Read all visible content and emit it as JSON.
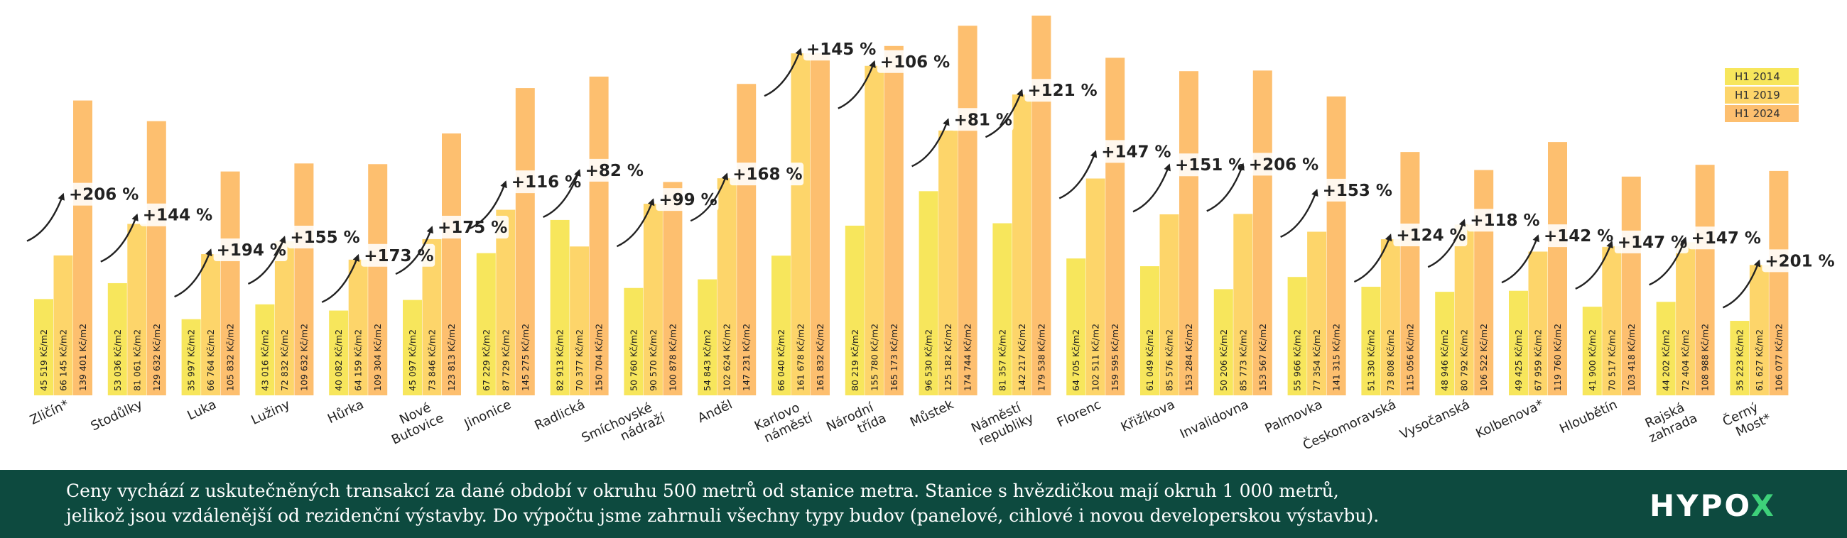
{
  "chart_data": {
    "type": "bar",
    "categories": [
      "Zličín*",
      "Stodůlky",
      "Luka",
      "Lužiny",
      "Hůrka",
      "Nové Butovice",
      "Jinonice",
      "Radlická",
      "Smíchovské nádraží",
      "Anděl",
      "Karlovo náměstí",
      "Národní třída",
      "Můstek",
      "Náměstí republiky",
      "Florenc",
      "Křižíkova",
      "Invalidovna",
      "Palmovka",
      "Českomoravská",
      "Vysočanská",
      "Kolbenova*",
      "Hloubětín",
      "Rajská zahrada",
      "Černý Most*"
    ],
    "category_lines": [
      [
        "Zličín*"
      ],
      [
        "Stodůlky"
      ],
      [
        "Luka"
      ],
      [
        "Lužiny"
      ],
      [
        "Hůrka"
      ],
      [
        "Nové",
        "Butovice"
      ],
      [
        "Jinonice"
      ],
      [
        "Radlická"
      ],
      [
        "Smíchovské",
        "nádraží"
      ],
      [
        "Anděl"
      ],
      [
        "Karlovo",
        "náměstí"
      ],
      [
        "Národní",
        "třída"
      ],
      [
        "Můstek"
      ],
      [
        "Náměstí",
        "republiky"
      ],
      [
        "Florenc"
      ],
      [
        "Křižíkova"
      ],
      [
        "Invalidovna"
      ],
      [
        "Palmovka"
      ],
      [
        "Českomoravská"
      ],
      [
        "Vysočanská"
      ],
      [
        "Kolbenova*"
      ],
      [
        "Hloubětín"
      ],
      [
        "Rajská",
        "zahrada"
      ],
      [
        "Černý",
        "Most*"
      ]
    ],
    "series": [
      {
        "name": "H1 2014",
        "color": "#f7e65c",
        "values": [
          45519,
          53036,
          35997,
          43016,
          40082,
          45097,
          67229,
          82913,
          50760,
          54843,
          66040,
          80219,
          96530,
          81357,
          64705,
          61049,
          50206,
          55966,
          51330,
          48946,
          49425,
          41900,
          44202,
          35223
        ]
      },
      {
        "name": "H1 2019",
        "color": "#fdd56a",
        "values": [
          66145,
          81061,
          66764,
          72832,
          64159,
          73846,
          87729,
          70377,
          90570,
          102624,
          161678,
          155780,
          125182,
          142217,
          102511,
          85576,
          85773,
          77354,
          73808,
          80792,
          67959,
          70517,
          72404,
          61627
        ]
      },
      {
        "name": "H1 2024",
        "color": "#fdbf6f",
        "values": [
          139401,
          129632,
          105832,
          109632,
          109304,
          123813,
          145275,
          150704,
          100878,
          147231,
          161832,
          165173,
          174744,
          179538,
          159595,
          153284,
          153567,
          141315,
          115056,
          106522,
          119760,
          103418,
          108988,
          106077
        ]
      }
    ],
    "value_labels": [
      [
        "45 519 Kč/m2",
        "66 145 Kč/m2",
        "139 401 Kč/m2"
      ],
      [
        "53 036 Kč/m2",
        "81 061 Kč/m2",
        "129 632 Kč/m2"
      ],
      [
        "35 997 Kč/m2",
        "66 764 Kč/m2",
        "105 832 Kč/m2"
      ],
      [
        "43 016 Kč/m2",
        "72 832 Kč/m2",
        "109 632 Kč/m2"
      ],
      [
        "40 082 Kč/m2",
        "64 159 Kč/m2",
        "109 304 Kč/m2"
      ],
      [
        "45 097 Kč/m2",
        "73 846 Kč/m2",
        "123 813 Kč/m2"
      ],
      [
        "67 229 Kč/m2",
        "87 729 Kč/m2",
        "145 275 Kč/m2"
      ],
      [
        "82 913 Kč/m2",
        "70 377 Kč/m2",
        "150 704 Kč/m2"
      ],
      [
        "50 760 Kč/m2",
        "90 570 Kč/m2",
        "100 878 Kč/m2"
      ],
      [
        "54 843 Kč/m2",
        "102 624 Kč/m2",
        "147 231 Kč/m2"
      ],
      [
        "66 040 Kč/m2",
        "161 678 Kč/m2",
        "161 832 Kč/m2"
      ],
      [
        "80 219 Kč/m2",
        "155 780 Kč/m2",
        "165 173 Kč/m2"
      ],
      [
        "96 530 Kč/m2",
        "125 182 Kč/m2",
        "174 744 Kč/m2"
      ],
      [
        "81 357 Kč/m2",
        "142 217 Kč/m2",
        "179 538 Kč/m2"
      ],
      [
        "64 705 Kč/m2",
        "102 511 Kč/m2",
        "159 595 Kč/m2"
      ],
      [
        "61 049 Kč/m2",
        "85 576 Kč/m2",
        "153 284 Kč/m2"
      ],
      [
        "50 206 Kč/m2",
        "85 773 Kč/m2",
        "153 567 Kč/m2"
      ],
      [
        "55 966 Kč/m2",
        "77 354 Kč/m2",
        "141 315 Kč/m2"
      ],
      [
        "51 330 Kč/m2",
        "73 808 Kč/m2",
        "115 056 Kč/m2"
      ],
      [
        "48 946 Kč/m2",
        "80 792 Kč/m2",
        "106 522 Kč/m2"
      ],
      [
        "49 425 Kč/m2",
        "67 959 Kč/m2",
        "119 760 Kč/m2"
      ],
      [
        "41 900 Kč/m2",
        "70 517 Kč/m2",
        "103 418 Kč/m2"
      ],
      [
        "44 202 Kč/m2",
        "72 404 Kč/m2",
        "108 988 Kč/m2"
      ],
      [
        "35 223 Kč/m2",
        "61 627 Kč/m2",
        "106 077 Kč/m2"
      ]
    ],
    "growth_labels": [
      "+206 %",
      "+144 %",
      "+194 %",
      "+155 %",
      "+173 %",
      "+175 %",
      "+116 %",
      "+82 %",
      "+99 %",
      "+168 %",
      "+145 %",
      "+106 %",
      "+81 %",
      "+121 %",
      "+147 %",
      "+151 %",
      "+206 %",
      "+153 %",
      "+124 %",
      "+118 %",
      "+142 %",
      "+147 %",
      "+147 %",
      "+201 %"
    ],
    "legend_position": "top-right",
    "grid": false
  },
  "footer": {
    "lines": [
      "Ceny vychází z uskutečněných transakcí za dané období v okruhu 500 metrů od stanice metra. Stanice s hvězdičkou mají okruh 1 000 metrů,",
      "jelikož jsou vzdálenější od rezidenční výstavby. Do výpočtu jsme zahrnuli všechny typy budov (panelové, cihlové i novou developerskou výstavbu)."
    ],
    "logo_main": "HYPO",
    "logo_accent": "X",
    "background": "#0d4a3f",
    "logo_accent_color": "#3ed17a"
  }
}
